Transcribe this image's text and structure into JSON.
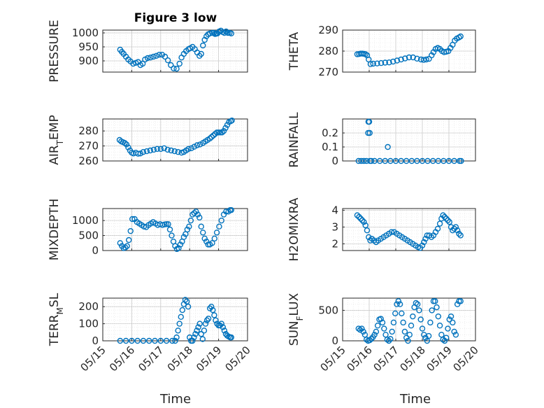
{
  "figure": {
    "title": "Figure 3 low",
    "xlabel": "Time"
  },
  "colors": {
    "marker": "#0072BD",
    "axis": "#262626",
    "grid": "#c8c8c8"
  },
  "chart_data": [
    {
      "type": "scatter",
      "title": "Figure 3 low",
      "ylabel": "PRESSURE",
      "ylim": [
        860,
        1010
      ],
      "yticks": [
        900,
        950,
        1000
      ],
      "xlim": [
        0,
        5
      ],
      "xticks": [
        "05/15",
        "05/16",
        "05/17",
        "05/18",
        "05/19",
        "05/20"
      ],
      "grid": true,
      "x": [
        0.6,
        0.66,
        0.72,
        0.8,
        0.88,
        0.96,
        1.05,
        1.14,
        1.22,
        1.3,
        1.38,
        1.46,
        1.55,
        1.65,
        1.75,
        1.85,
        1.95,
        2.05,
        2.15,
        2.25,
        2.35,
        2.45,
        2.55,
        2.65,
        2.72,
        2.8,
        2.88,
        2.96,
        3.02,
        3.1,
        3.18,
        3.26,
        3.34,
        3.4,
        3.46,
        3.52,
        3.58,
        3.64,
        3.7,
        3.78,
        3.84,
        3.88,
        3.92,
        3.96,
        4.02,
        4.08,
        4.14,
        4.2,
        4.26,
        4.32,
        4.38,
        4.44
      ],
      "y": [
        940,
        932,
        925,
        915,
        905,
        898,
        890,
        893,
        896,
        885,
        890,
        905,
        910,
        912,
        915,
        918,
        922,
        922,
        915,
        902,
        885,
        873,
        872,
        890,
        912,
        925,
        935,
        942,
        945,
        950,
        942,
        930,
        918,
        925,
        955,
        975,
        988,
        995,
        998,
        1000,
        1000,
        996,
        997,
        998,
        1005,
        1008,
        1003,
        1000,
        1005,
        1000,
        1000,
        998
      ]
    },
    {
      "type": "scatter",
      "ylabel": "THETA",
      "ylim": [
        270,
        290
      ],
      "yticks": [
        270,
        280,
        290
      ],
      "xlim": [
        0,
        5
      ],
      "xticks": [
        "05/15",
        "05/16",
        "05/17",
        "05/18",
        "05/19",
        "05/20"
      ],
      "grid": true,
      "x": [
        0.55,
        0.62,
        0.68,
        0.74,
        0.8,
        0.86,
        0.92,
        0.98,
        1.05,
        1.15,
        1.3,
        1.45,
        1.6,
        1.75,
        1.9,
        2.05,
        2.2,
        2.35,
        2.5,
        2.65,
        2.8,
        2.95,
        3.05,
        3.15,
        3.25,
        3.35,
        3.42,
        3.5,
        3.58,
        3.66,
        3.74,
        3.82,
        3.9,
        3.98,
        4.06,
        4.14,
        4.22,
        4.3,
        4.38,
        4.44
      ],
      "y": [
        278.5,
        278.6,
        278.8,
        278.8,
        278.7,
        278.5,
        278.0,
        276.0,
        273.8,
        274.0,
        274.1,
        274.3,
        274.5,
        274.6,
        275.0,
        275.5,
        276.0,
        276.5,
        277.0,
        277.0,
        276.4,
        276.0,
        275.8,
        276.0,
        276.3,
        278.0,
        279.5,
        281.0,
        281.5,
        281.0,
        280.0,
        279.5,
        279.7,
        280.0,
        281.5,
        283.0,
        285.0,
        286.0,
        286.5,
        287.0
      ]
    },
    {
      "type": "scatter",
      "ylabel": "AIR_TEMP",
      "ylim": [
        260,
        288
      ],
      "yticks": [
        260,
        270,
        280
      ],
      "xlim": [
        0,
        5
      ],
      "xticks": [
        "05/15",
        "05/16",
        "05/17",
        "05/18",
        "05/19",
        "05/20"
      ],
      "grid": true,
      "x": [
        0.58,
        0.64,
        0.7,
        0.76,
        0.82,
        0.88,
        0.94,
        1.0,
        1.06,
        1.14,
        1.22,
        1.3,
        1.4,
        1.52,
        1.64,
        1.76,
        1.88,
        2.0,
        2.12,
        2.24,
        2.36,
        2.48,
        2.6,
        2.72,
        2.8,
        2.88,
        2.96,
        3.06,
        3.16,
        3.26,
        3.36,
        3.46,
        3.54,
        3.62,
        3.7,
        3.76,
        3.82,
        3.88,
        3.94,
        4.0,
        4.06,
        4.12,
        4.18,
        4.24,
        4.3,
        4.36,
        4.42,
        4.46
      ],
      "y": [
        274,
        273,
        272.5,
        272,
        271,
        269,
        267,
        265.5,
        265,
        265.5,
        264.8,
        265,
        266,
        266.5,
        267,
        267.5,
        268,
        268,
        268.5,
        267.5,
        267,
        266.5,
        266,
        265.5,
        266,
        267,
        268,
        268.5,
        269.5,
        270.5,
        271,
        272,
        273,
        274,
        275,
        276,
        277,
        278,
        279,
        279,
        279,
        279,
        280,
        282,
        284,
        286,
        286.5,
        287
      ]
    },
    {
      "type": "scatter",
      "ylabel": "RAINFALL",
      "ylim": [
        0,
        0.3
      ],
      "yticks": [
        0,
        0.1,
        0.2
      ],
      "xlim": [
        0,
        5
      ],
      "xticks": [
        "05/15",
        "05/16",
        "05/17",
        "05/18",
        "05/19",
        "05/20"
      ],
      "grid": true,
      "x": [
        0.6,
        0.7,
        0.8,
        0.9,
        0.96,
        0.97,
        1.0,
        1.02,
        1.03,
        1.08,
        1.2,
        1.4,
        1.6,
        1.7,
        1.8,
        2.0,
        2.2,
        2.4,
        2.6,
        2.8,
        3.0,
        3.2,
        3.4,
        3.6,
        3.8,
        4.0,
        4.2,
        4.4,
        4.46
      ],
      "y": [
        0,
        0,
        0,
        0,
        0.2,
        0.28,
        0.28,
        0.2,
        0,
        0,
        0,
        0,
        0,
        0.1,
        0,
        0,
        0,
        0,
        0,
        0,
        0,
        0,
        0,
        0,
        0,
        0,
        0,
        0,
        0
      ]
    },
    {
      "type": "scatter",
      "ylabel": "MIXDEPTH",
      "ylim": [
        0,
        1400
      ],
      "yticks": [
        0,
        500,
        1000
      ],
      "xlim": [
        0,
        5
      ],
      "xticks": [
        "05/15",
        "05/16",
        "05/17",
        "05/18",
        "05/19",
        "05/20"
      ],
      "grid": true,
      "x": [
        0.6,
        0.66,
        0.72,
        0.78,
        0.84,
        0.9,
        0.96,
        1.02,
        1.1,
        1.18,
        1.26,
        1.34,
        1.42,
        1.5,
        1.58,
        1.66,
        1.74,
        1.82,
        1.9,
        1.98,
        2.06,
        2.14,
        2.2,
        2.26,
        2.32,
        2.38,
        2.44,
        2.5,
        2.56,
        2.62,
        2.68,
        2.74,
        2.8,
        2.86,
        2.92,
        2.98,
        3.04,
        3.1,
        3.16,
        3.22,
        3.28,
        3.34,
        3.4,
        3.46,
        3.52,
        3.58,
        3.64,
        3.7,
        3.78,
        3.86,
        3.94,
        4.02,
        4.1,
        4.18,
        4.26,
        4.34,
        4.4,
        4.44
      ],
      "y": [
        250,
        150,
        80,
        100,
        150,
        350,
        650,
        1050,
        1050,
        950,
        900,
        850,
        800,
        780,
        850,
        900,
        950,
        900,
        850,
        880,
        850,
        870,
        880,
        880,
        700,
        500,
        300,
        150,
        50,
        80,
        200,
        300,
        450,
        550,
        700,
        800,
        1000,
        1200,
        1250,
        1300,
        1200,
        1100,
        800,
        600,
        400,
        300,
        200,
        200,
        250,
        400,
        600,
        800,
        1000,
        1200,
        1300,
        1300,
        1350,
        1350
      ]
    },
    {
      "type": "scatter",
      "ylabel": "H2OMIXRA",
      "ylim": [
        1.6,
        4.1
      ],
      "yticks": [
        2,
        3,
        4
      ],
      "xlim": [
        0,
        5
      ],
      "xticks": [
        "05/15",
        "05/16",
        "05/17",
        "05/18",
        "05/19",
        "05/20"
      ],
      "grid": true,
      "x": [
        0.55,
        0.62,
        0.68,
        0.74,
        0.8,
        0.86,
        0.92,
        0.98,
        1.04,
        1.1,
        1.18,
        1.26,
        1.34,
        1.44,
        1.54,
        1.64,
        1.74,
        1.84,
        1.94,
        2.04,
        2.14,
        2.24,
        2.34,
        2.44,
        2.54,
        2.64,
        2.74,
        2.84,
        2.92,
        3.0,
        3.06,
        3.12,
        3.18,
        3.26,
        3.34,
        3.42,
        3.5,
        3.58,
        3.66,
        3.72,
        3.78,
        3.84,
        3.9,
        3.96,
        4.02,
        4.08,
        4.14,
        4.2,
        4.26,
        4.32,
        4.38,
        4.44
      ],
      "y": [
        3.7,
        3.6,
        3.5,
        3.4,
        3.3,
        3.1,
        2.8,
        2.4,
        2.2,
        2.3,
        2.2,
        2.1,
        2.2,
        2.3,
        2.4,
        2.5,
        2.6,
        2.7,
        2.7,
        2.6,
        2.5,
        2.4,
        2.3,
        2.2,
        2.1,
        2.0,
        1.9,
        1.8,
        1.75,
        1.9,
        2.1,
        2.3,
        2.5,
        2.5,
        2.4,
        2.5,
        2.7,
        2.9,
        3.2,
        3.5,
        3.7,
        3.6,
        3.5,
        3.4,
        3.3,
        3.0,
        2.8,
        2.9,
        3.0,
        2.8,
        2.6,
        2.5
      ]
    },
    {
      "type": "scatter",
      "ylabel": "TERR_MSL",
      "ylim": [
        0,
        250
      ],
      "yticks": [
        0,
        100,
        200
      ],
      "xlim": [
        0,
        5
      ],
      "xticks": [
        "05/15",
        "05/16",
        "05/17",
        "05/18",
        "05/19",
        "05/20"
      ],
      "grid": true,
      "x": [
        0.6,
        0.8,
        1.0,
        1.2,
        1.4,
        1.6,
        1.8,
        2.0,
        2.2,
        2.4,
        2.5,
        2.55,
        2.6,
        2.65,
        2.7,
        2.75,
        2.8,
        2.85,
        2.9,
        2.95,
        3.0,
        3.05,
        3.1,
        3.15,
        3.2,
        3.25,
        3.3,
        3.35,
        3.4,
        3.45,
        3.5,
        3.55,
        3.6,
        3.65,
        3.7,
        3.75,
        3.8,
        3.85,
        3.9,
        3.95,
        4.0,
        4.05,
        4.1,
        4.15,
        4.2,
        4.25,
        4.3,
        4.35,
        4.4,
        4.44
      ],
      "y": [
        0,
        0,
        0,
        0,
        0,
        0,
        0,
        0,
        0,
        0,
        0,
        20,
        60,
        100,
        140,
        180,
        215,
        240,
        230,
        200,
        20,
        0,
        0,
        20,
        40,
        60,
        80,
        100,
        40,
        10,
        60,
        100,
        120,
        130,
        190,
        200,
        180,
        150,
        120,
        100,
        90,
        90,
        100,
        80,
        60,
        40,
        30,
        25,
        20,
        20
      ]
    },
    {
      "type": "scatter",
      "ylabel": "SUN_FLUX",
      "ylim": [
        0,
        700
      ],
      "yticks": [
        0,
        500
      ],
      "xlim": [
        0,
        5
      ],
      "xticks": [
        "05/15",
        "05/16",
        "05/17",
        "05/18",
        "05/19",
        "05/20"
      ],
      "grid": true,
      "x": [
        0.6,
        0.66,
        0.72,
        0.78,
        0.84,
        0.9,
        0.96,
        1.02,
        1.08,
        1.14,
        1.2,
        1.26,
        1.32,
        1.38,
        1.44,
        1.5,
        1.56,
        1.62,
        1.68,
        1.74,
        1.8,
        1.86,
        1.92,
        1.98,
        2.04,
        2.1,
        2.16,
        2.22,
        2.28,
        2.34,
        2.4,
        2.46,
        2.52,
        2.58,
        2.64,
        2.7,
        2.76,
        2.82,
        2.88,
        2.94,
        3.0,
        3.06,
        3.12,
        3.18,
        3.24,
        3.3,
        3.36,
        3.42,
        3.48,
        3.54,
        3.6,
        3.66,
        3.72,
        3.78,
        3.84,
        3.9,
        3.96,
        4.02,
        4.08,
        4.14,
        4.2,
        4.26,
        4.32,
        4.38,
        4.44
      ],
      "y": [
        200,
        180,
        200,
        150,
        100,
        20,
        0,
        10,
        30,
        60,
        100,
        150,
        250,
        350,
        360,
        300,
        200,
        100,
        20,
        0,
        30,
        150,
        300,
        450,
        600,
        650,
        600,
        450,
        300,
        150,
        50,
        0,
        100,
        250,
        400,
        550,
        620,
        600,
        500,
        350,
        200,
        100,
        50,
        0,
        80,
        300,
        500,
        650,
        650,
        550,
        400,
        250,
        100,
        20,
        0,
        50,
        200,
        350,
        400,
        300,
        150,
        100,
        600,
        650,
        650
      ]
    }
  ]
}
